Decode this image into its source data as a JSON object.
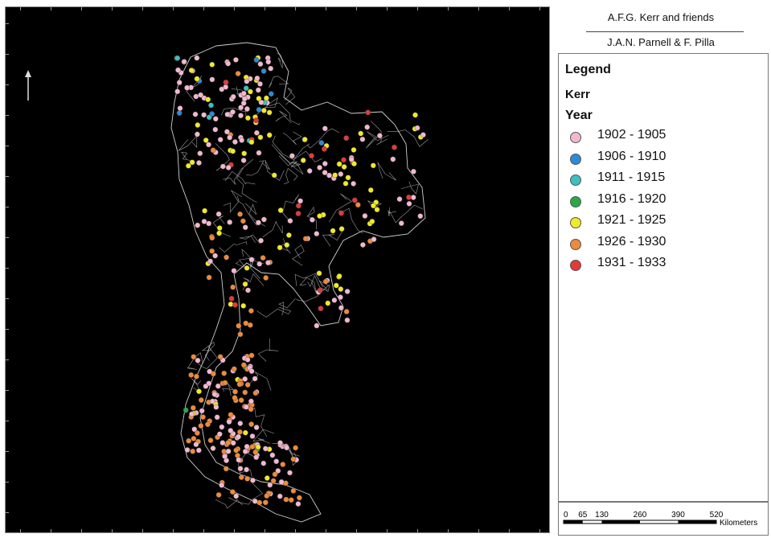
{
  "title": {
    "line1": "A.F.G. Kerr and friends",
    "line2": "J.A.N. Parnell & F. Pilla"
  },
  "legend": {
    "heading": "Legend",
    "subheading": "Kerr",
    "group_label": "Year",
    "items": [
      {
        "label": "1902 - 1905",
        "color": "#f2b8d0"
      },
      {
        "label": "1906 - 1910",
        "color": "#2f8ad6"
      },
      {
        "label": "1911 - 1915",
        "color": "#3cc0c0"
      },
      {
        "label": "1916 - 1920",
        "color": "#2aa84a"
      },
      {
        "label": "1921 - 1925",
        "color": "#f0ea28"
      },
      {
        "label": "1926 - 1930",
        "color": "#ee8a3a"
      },
      {
        "label": "1931 - 1933",
        "color": "#e23a3a"
      }
    ]
  },
  "scale_bar": {
    "ticks": [
      "0",
      "65",
      "130",
      "260",
      "390",
      "520"
    ],
    "unit": "Kilometers"
  },
  "map": {
    "background": "#000000",
    "boundary_color": "#cfcfcf",
    "north_arrow_icon": "north-arrow-icon"
  }
}
